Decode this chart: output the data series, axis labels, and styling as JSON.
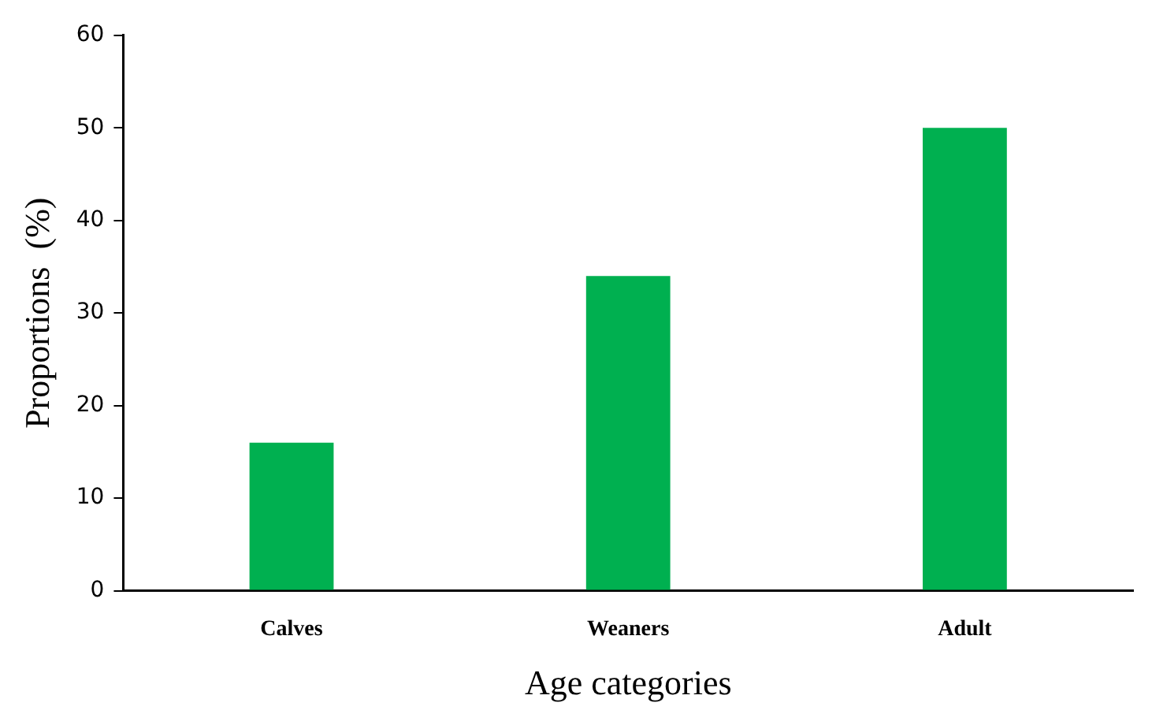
{
  "chart_data": {
    "type": "bar",
    "xlabel": "Age categories",
    "ylabel": "Proportions  (%)",
    "categories": [
      "Calves",
      "Weaners",
      "Adult"
    ],
    "values": [
      16,
      34,
      50
    ],
    "color": "#00b050",
    "ylim": [
      0,
      60
    ],
    "yticks": [
      0,
      10,
      20,
      30,
      40,
      50,
      60
    ],
    "grid": false,
    "legend": false
  }
}
